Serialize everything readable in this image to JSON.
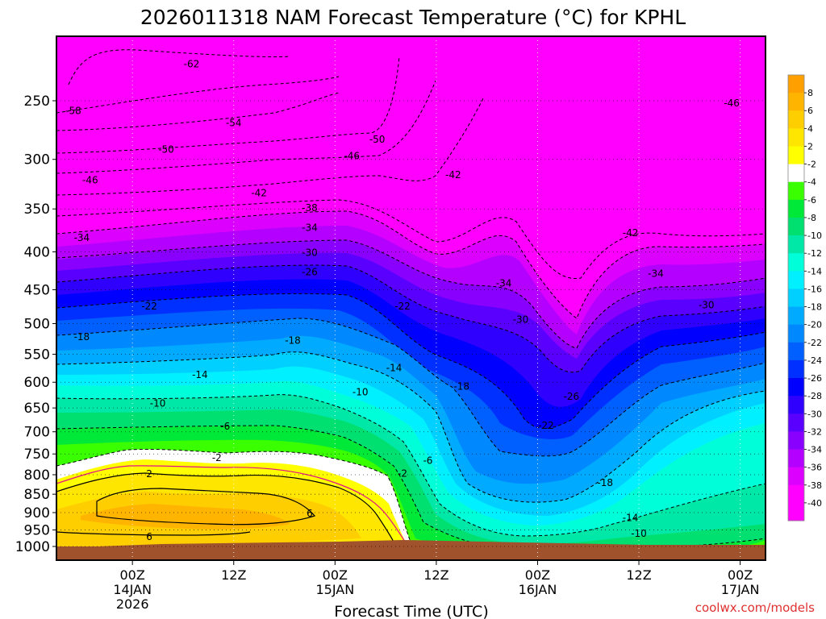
{
  "chart_data": {
    "type": "heatmap",
    "title": "2026011318 NAM Forecast Temperature (°C) for KPHL",
    "xlabel": "Forecast Time (UTC)",
    "ylabel": "",
    "credit": "coolwx.com/models",
    "y_axis": {
      "scale": "log-pressure",
      "range": [
        1000,
        200
      ],
      "ticks": [
        "250",
        "300",
        "350",
        "400",
        "450",
        "500",
        "550",
        "600",
        "650",
        "700",
        "750",
        "800",
        "850",
        "900",
        "950",
        "1000"
      ],
      "tick_values": [
        250,
        300,
        350,
        400,
        450,
        500,
        550,
        600,
        650,
        700,
        750,
        800,
        850,
        900,
        950,
        1000
      ]
    },
    "x_axis": {
      "range_hours": [
        -3,
        81
      ],
      "ticks": [
        {
          "hour": 6,
          "line1": "00Z",
          "line2": "14JAN",
          "line3": "2026"
        },
        {
          "hour": 18,
          "line1": "12Z",
          "line2": "",
          "line3": ""
        },
        {
          "hour": 30,
          "line1": "00Z",
          "line2": "15JAN",
          "line3": ""
        },
        {
          "hour": 42,
          "line1": "12Z",
          "line2": "",
          "line3": ""
        },
        {
          "hour": 54,
          "line1": "00Z",
          "line2": "16JAN",
          "line3": ""
        },
        {
          "hour": 66,
          "line1": "12Z",
          "line2": "",
          "line3": ""
        },
        {
          "hour": 78,
          "line1": "00Z",
          "line2": "17JAN",
          "line3": ""
        }
      ]
    },
    "grid": true,
    "colorbar": {
      "labels": [
        "8",
        "6",
        "4",
        "2",
        "-2",
        "-4",
        "-6",
        "-8",
        "-10",
        "-12",
        "-14",
        "-16",
        "-18",
        "-20",
        "-22",
        "-24",
        "-26",
        "-28",
        "-30",
        "-32",
        "-34",
        "-36",
        "-38",
        "-40"
      ],
      "colors": [
        "#ff9f00",
        "#ffb400",
        "#ffce00",
        "#ffe600",
        "#ffff00",
        "#ffffff",
        "#39ff00",
        "#00e838",
        "#00e070",
        "#00e8a8",
        "#00ffd8",
        "#00f0ff",
        "#00d0ff",
        "#00aaff",
        "#0088ff",
        "#0060ff",
        "#0030ff",
        "#0000ff",
        "#3000ff",
        "#5a00ff",
        "#8a00ff",
        "#b400ff",
        "#dc00ff",
        "#ff00ff",
        "#ff00ff"
      ]
    },
    "contour_labels": [
      {
        "text": "-62",
        "hour": 13,
        "p": 223
      },
      {
        "text": "-58",
        "hour": -1,
        "p": 258
      },
      {
        "text": "-54",
        "hour": 18,
        "p": 268
      },
      {
        "text": "-50",
        "hour": 10,
        "p": 291
      },
      {
        "text": "-50",
        "hour": 35,
        "p": 282
      },
      {
        "text": "-46",
        "hour": 1,
        "p": 320
      },
      {
        "text": "-46",
        "hour": 32,
        "p": 297
      },
      {
        "text": "-46",
        "hour": 77,
        "p": 252
      },
      {
        "text": "-42",
        "hour": 21,
        "p": 333
      },
      {
        "text": "-42",
        "hour": 44,
        "p": 315
      },
      {
        "text": "-42",
        "hour": 65,
        "p": 377
      },
      {
        "text": "-38",
        "hour": 27,
        "p": 349
      },
      {
        "text": "-34",
        "hour": 0,
        "p": 383
      },
      {
        "text": "-34",
        "hour": 27,
        "p": 371
      },
      {
        "text": "-34",
        "hour": 50,
        "p": 441
      },
      {
        "text": "-34",
        "hour": 68,
        "p": 428
      },
      {
        "text": "-30",
        "hour": 27,
        "p": 401
      },
      {
        "text": "-30",
        "hour": 52,
        "p": 494
      },
      {
        "text": "-30",
        "hour": 74,
        "p": 472
      },
      {
        "text": "-26",
        "hour": 27,
        "p": 426
      },
      {
        "text": "-26",
        "hour": 58,
        "p": 627
      },
      {
        "text": "-22",
        "hour": 8,
        "p": 474
      },
      {
        "text": "-22",
        "hour": 38,
        "p": 474
      },
      {
        "text": "-22",
        "hour": 55,
        "p": 687
      },
      {
        "text": "-18",
        "hour": 0,
        "p": 521
      },
      {
        "text": "-18",
        "hour": 25,
        "p": 527
      },
      {
        "text": "-18",
        "hour": 45,
        "p": 608
      },
      {
        "text": "-18",
        "hour": 62,
        "p": 820
      },
      {
        "text": "-14",
        "hour": 14,
        "p": 586
      },
      {
        "text": "-14",
        "hour": 37,
        "p": 574
      },
      {
        "text": "-14",
        "hour": 65,
        "p": 915
      },
      {
        "text": "-10",
        "hour": 9,
        "p": 641
      },
      {
        "text": "-10",
        "hour": 33,
        "p": 619
      },
      {
        "text": "-10",
        "hour": 66,
        "p": 961
      },
      {
        "text": "-6",
        "hour": 17,
        "p": 688
      },
      {
        "text": "-6",
        "hour": 41,
        "p": 766
      },
      {
        "text": "-2",
        "hour": 16,
        "p": 759
      },
      {
        "text": "-2",
        "hour": 38,
        "p": 797
      },
      {
        "text": "2",
        "hour": 8,
        "p": 798
      },
      {
        "text": "6",
        "hour": 27,
        "p": 902
      },
      {
        "text": "6",
        "hour": 8,
        "p": 970
      }
    ]
  }
}
